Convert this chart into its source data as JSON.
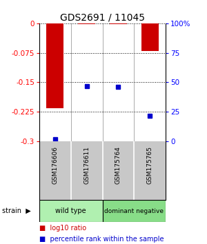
{
  "title": "GDS2691 / 11045",
  "samples": [
    "GSM176606",
    "GSM176611",
    "GSM175764",
    "GSM175765"
  ],
  "log10_ratio": [
    -0.215,
    -0.003,
    -0.003,
    -0.07
  ],
  "percentile_rank": [
    2,
    47,
    46,
    22
  ],
  "y_min": -0.3,
  "y_max": 0.0,
  "y_ticks_left": [
    0,
    -0.075,
    -0.15,
    -0.225,
    -0.3
  ],
  "y_ticks_right": [
    100,
    75,
    50,
    25,
    0
  ],
  "bar_color": "#cc0000",
  "dot_color": "#0000cc",
  "bg_color": "#ffffff",
  "bar_width": 0.55,
  "label_area_color": "#c8c8c8",
  "group_left_color": "#b0f0b0",
  "group_right_color": "#88dd88"
}
